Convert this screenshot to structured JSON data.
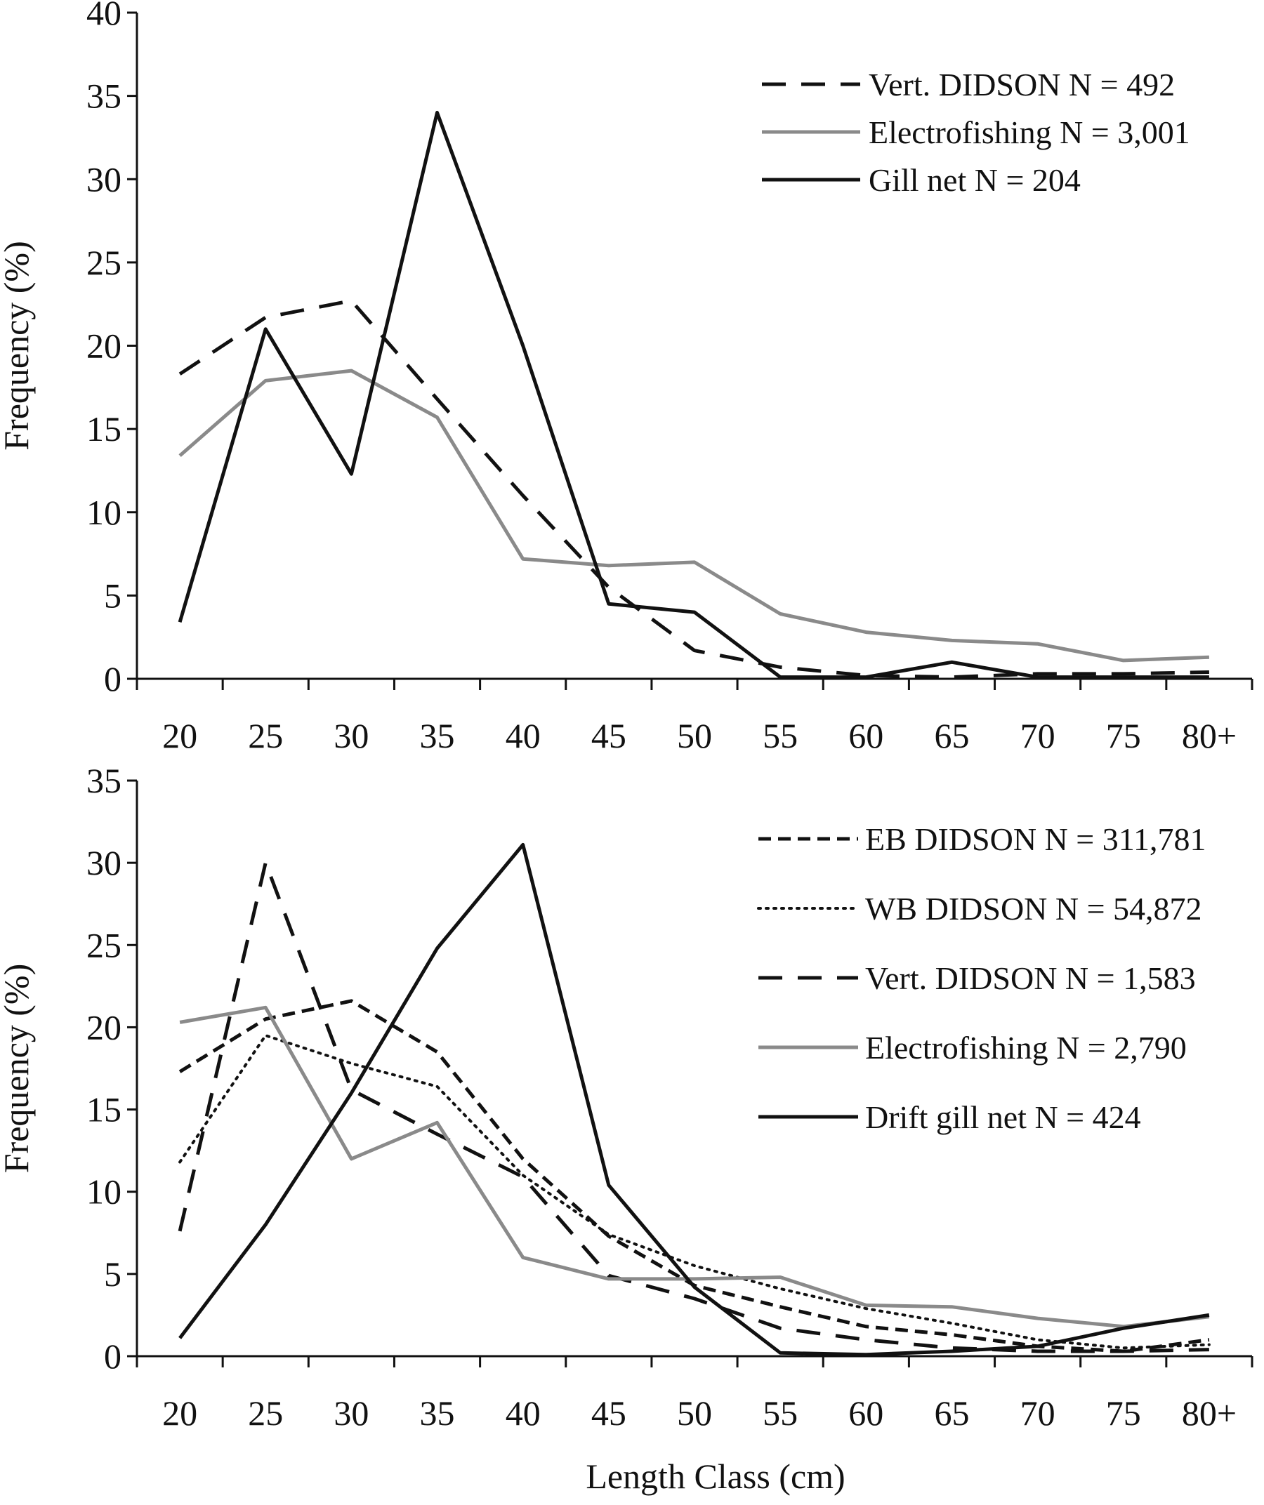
{
  "chart_data": [
    {
      "type": "line",
      "title": "",
      "xlabel": "",
      "ylabel": "Frequency (%)",
      "categories": [
        "20",
        "25",
        "30",
        "35",
        "40",
        "45",
        "50",
        "55",
        "60",
        "65",
        "70",
        "75",
        "80+"
      ],
      "ylim": [
        0,
        40
      ],
      "yticks": [
        0,
        5,
        10,
        15,
        20,
        25,
        30,
        35,
        40
      ],
      "grid": false,
      "legend_position": "top-right",
      "series": [
        {
          "name": "Vert. DIDSON  N = 492",
          "style": "dashed",
          "color": "#111111",
          "values": [
            18.3,
            21.7,
            22.7,
            16.8,
            11.0,
            5.5,
            1.7,
            0.7,
            0.2,
            0.1,
            0.3,
            0.3,
            0.4
          ]
        },
        {
          "name": "Electrofishing N = 3,001",
          "style": "solid",
          "color": "#8a8a8a",
          "values": [
            13.4,
            17.9,
            18.5,
            15.7,
            7.2,
            6.8,
            7.0,
            3.9,
            2.8,
            2.3,
            2.1,
            1.1,
            1.3
          ]
        },
        {
          "name": "Gill net N = 204",
          "style": "solid",
          "color": "#111111",
          "values": [
            3.4,
            21.0,
            12.3,
            34.0,
            20.0,
            4.5,
            4.0,
            0.1,
            0.1,
            1.0,
            0.1,
            0.1,
            0.1
          ]
        }
      ]
    },
    {
      "type": "line",
      "title": "",
      "xlabel": "Length Class (cm)",
      "ylabel": "Frequency (%)",
      "categories": [
        "20",
        "25",
        "30",
        "35",
        "40",
        "45",
        "50",
        "55",
        "60",
        "65",
        "70",
        "75",
        "80+"
      ],
      "ylim": [
        0,
        35
      ],
      "yticks": [
        0,
        5,
        10,
        15,
        20,
        25,
        30,
        35
      ],
      "grid": false,
      "legend_position": "top-right",
      "series": [
        {
          "name": "EB DIDSON  N = 311,781",
          "style": "short-dash",
          "color": "#111111",
          "values": [
            17.3,
            20.5,
            21.6,
            18.5,
            12.0,
            7.3,
            4.3,
            3.0,
            1.8,
            1.3,
            0.6,
            0.3,
            1.0
          ]
        },
        {
          "name": "WB DIDSON  N = 54,872",
          "style": "dotted",
          "color": "#111111",
          "values": [
            11.8,
            19.5,
            17.8,
            16.4,
            11.0,
            7.4,
            5.5,
            4.1,
            2.9,
            2.0,
            1.0,
            0.5,
            0.7
          ]
        },
        {
          "name": "Vert. DIDSON  N = 1,583",
          "style": "dashed",
          "color": "#111111",
          "values": [
            7.6,
            30.0,
            16.2,
            13.5,
            10.9,
            4.9,
            3.5,
            1.7,
            1.0,
            0.5,
            0.3,
            0.3,
            0.4
          ]
        },
        {
          "name": "Electrofishing N = 2,790",
          "style": "solid",
          "color": "#8a8a8a",
          "values": [
            20.3,
            21.2,
            12.0,
            14.2,
            6.0,
            4.7,
            4.7,
            4.8,
            3.1,
            3.0,
            2.3,
            1.8,
            2.4
          ]
        },
        {
          "name": "Drift gill  net N = 424",
          "style": "solid",
          "color": "#111111",
          "values": [
            1.1,
            8.0,
            16.0,
            24.8,
            31.1,
            10.4,
            4.2,
            0.2,
            0.1,
            0.3,
            0.6,
            1.7,
            2.5
          ]
        }
      ]
    }
  ]
}
